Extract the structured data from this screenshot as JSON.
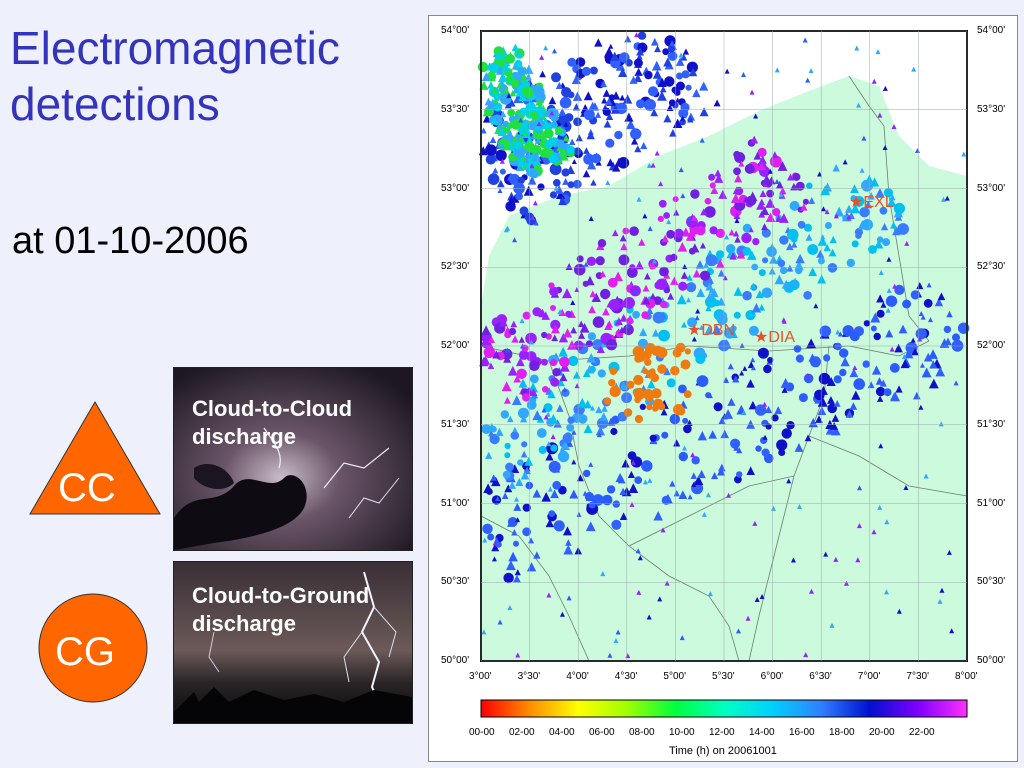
{
  "title": "Electromagnetic detections",
  "title_line1": "Electromagnetic",
  "title_line2": "detections",
  "subtitle": "at 01-10-2006",
  "photos": [
    {
      "caption_line1": "Cloud-to-Cloud",
      "caption_line2": "discharge"
    },
    {
      "caption_line1": "Cloud-to-Ground",
      "caption_line2": "discharge"
    }
  ],
  "badges": {
    "cc": {
      "label": "CC",
      "color": "#ff6600",
      "shape": "triangle"
    },
    "cg": {
      "label": "CG",
      "color": "#ff6600",
      "shape": "circle"
    }
  },
  "map": {
    "lat_labels": [
      "54°00'",
      "53°30'",
      "53°00'",
      "52°30'",
      "52°00'",
      "51°30'",
      "51°00'",
      "50°30'",
      "50°00'"
    ],
    "lon_labels": [
      "3°00'",
      "3°30'",
      "4°00'",
      "4°30'",
      "5°00'",
      "5°30'",
      "6°00'",
      "6°30'",
      "7°00'",
      "7°30'",
      "8°00'"
    ],
    "stations": [
      {
        "name": "EXL"
      },
      {
        "name": "DBN"
      },
      {
        "name": "DIA"
      }
    ],
    "colors": {
      "land": "#ccfadc",
      "sea": "#ffffff",
      "station": "#e8502a"
    }
  },
  "colorbar": {
    "ticks": [
      "00-00",
      "02-00",
      "04-00",
      "06-00",
      "08-00",
      "10-00",
      "12-00",
      "14-00",
      "16-00",
      "18-00",
      "20-00",
      "22-00"
    ],
    "title": "Time (h) on 20061001"
  }
}
